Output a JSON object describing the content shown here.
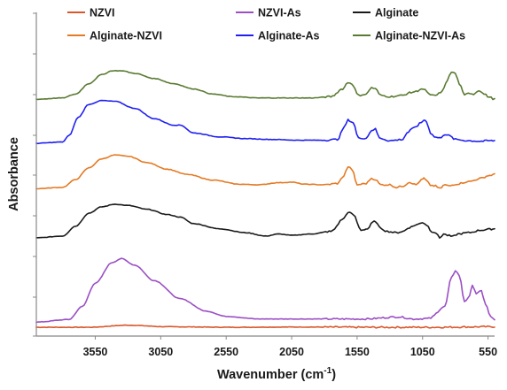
{
  "chart_data": {
    "type": "line",
    "xlabel": "Wavenumber (cm",
    "xlabel_sup": "-1",
    "xlabel_close": ")",
    "ylabel": "Absorbance",
    "x_reversed": true,
    "xlim": [
      4000,
      500
    ],
    "xticks": [
      3550,
      3050,
      2550,
      2050,
      1550,
      1050,
      550
    ],
    "y_tick_labels": false,
    "grid": false,
    "legend_position": "top",
    "series": [
      {
        "name": "NZVI",
        "color": "#d9572c",
        "offset": 0.1,
        "points": [
          [
            4000,
            0.1
          ],
          [
            3600,
            0.1
          ],
          [
            3300,
            0.18
          ],
          [
            3000,
            0.12
          ],
          [
            2500,
            0.1
          ],
          [
            2000,
            0.11
          ],
          [
            1500,
            0.1
          ],
          [
            1000,
            0.1
          ],
          [
            500,
            0.12
          ]
        ]
      },
      {
        "name": "NZVI-As",
        "color": "#9b4fc4",
        "offset": 0.3,
        "points": [
          [
            4000,
            0.3
          ],
          [
            3750,
            0.4
          ],
          [
            3650,
            0.9
          ],
          [
            3550,
            1.8
          ],
          [
            3420,
            2.6
          ],
          [
            3350,
            2.75
          ],
          [
            3250,
            2.5
          ],
          [
            3100,
            1.9
          ],
          [
            2900,
            1.2
          ],
          [
            2700,
            0.72
          ],
          [
            2550,
            0.52
          ],
          [
            2300,
            0.42
          ],
          [
            2000,
            0.42
          ],
          [
            1500,
            0.42
          ],
          [
            1230,
            0.5
          ],
          [
            1120,
            0.42
          ],
          [
            1000,
            0.44
          ],
          [
            880,
            0.9
          ],
          [
            830,
            2.0
          ],
          [
            800,
            2.3
          ],
          [
            770,
            2.1
          ],
          [
            730,
            1.1
          ],
          [
            690,
            1.3
          ],
          [
            670,
            1.75
          ],
          [
            640,
            1.4
          ],
          [
            600,
            1.5
          ],
          [
            570,
            1.0
          ],
          [
            530,
            0.5
          ],
          [
            500,
            0.4
          ]
        ]
      },
      {
        "name": "Alginate",
        "color": "#1a1a1a",
        "offset": 3.55,
        "points": [
          [
            4000,
            3.55
          ],
          [
            3800,
            3.62
          ],
          [
            3700,
            4.0
          ],
          [
            3600,
            4.5
          ],
          [
            3500,
            4.75
          ],
          [
            3400,
            4.85
          ],
          [
            3300,
            4.8
          ],
          [
            3150,
            4.65
          ],
          [
            3000,
            4.45
          ],
          [
            2900,
            4.35
          ],
          [
            2800,
            4.1
          ],
          [
            2600,
            3.9
          ],
          [
            2400,
            3.75
          ],
          [
            2250,
            3.62
          ],
          [
            2150,
            3.7
          ],
          [
            2050,
            3.65
          ],
          [
            1900,
            3.7
          ],
          [
            1750,
            3.8
          ],
          [
            1650,
            4.3
          ],
          [
            1620,
            4.55
          ],
          [
            1580,
            4.45
          ],
          [
            1520,
            3.85
          ],
          [
            1470,
            3.9
          ],
          [
            1430,
            4.15
          ],
          [
            1410,
            4.2
          ],
          [
            1380,
            3.95
          ],
          [
            1320,
            3.8
          ],
          [
            1250,
            3.75
          ],
          [
            1200,
            3.8
          ],
          [
            1150,
            3.95
          ],
          [
            1100,
            4.05
          ],
          [
            1050,
            4.15
          ],
          [
            1020,
            4.05
          ],
          [
            980,
            3.8
          ],
          [
            950,
            3.75
          ],
          [
            920,
            3.55
          ],
          [
            890,
            3.7
          ],
          [
            860,
            3.65
          ],
          [
            820,
            3.6
          ],
          [
            780,
            3.7
          ],
          [
            700,
            3.75
          ],
          [
            600,
            3.85
          ],
          [
            550,
            3.88
          ],
          [
            500,
            3.9
          ]
        ]
      },
      {
        "name": "Alginate-NZVI",
        "color": "#e47a24",
        "offset": 5.45,
        "points": [
          [
            4000,
            5.45
          ],
          [
            3800,
            5.5
          ],
          [
            3700,
            5.8
          ],
          [
            3600,
            6.25
          ],
          [
            3500,
            6.6
          ],
          [
            3400,
            6.75
          ],
          [
            3300,
            6.7
          ],
          [
            3150,
            6.45
          ],
          [
            3000,
            6.2
          ],
          [
            2850,
            6.0
          ],
          [
            2650,
            5.78
          ],
          [
            2450,
            5.62
          ],
          [
            2300,
            5.6
          ],
          [
            2150,
            5.68
          ],
          [
            2050,
            5.7
          ],
          [
            1950,
            5.62
          ],
          [
            1800,
            5.6
          ],
          [
            1700,
            5.65
          ],
          [
            1650,
            5.95
          ],
          [
            1620,
            6.3
          ],
          [
            1590,
            6.2
          ],
          [
            1550,
            5.6
          ],
          [
            1480,
            5.65
          ],
          [
            1440,
            5.85
          ],
          [
            1410,
            5.8
          ],
          [
            1370,
            5.6
          ],
          [
            1300,
            5.6
          ],
          [
            1250,
            5.5
          ],
          [
            1200,
            5.55
          ],
          [
            1150,
            5.7
          ],
          [
            1100,
            5.6
          ],
          [
            1060,
            5.78
          ],
          [
            1040,
            5.85
          ],
          [
            1020,
            5.75
          ],
          [
            990,
            5.58
          ],
          [
            950,
            5.55
          ],
          [
            920,
            5.45
          ],
          [
            880,
            5.6
          ],
          [
            850,
            5.55
          ],
          [
            800,
            5.62
          ],
          [
            700,
            5.72
          ],
          [
            600,
            5.85
          ],
          [
            550,
            5.95
          ],
          [
            500,
            6.0
          ]
        ]
      },
      {
        "name": "Alginate-As",
        "color": "#2020f0",
        "offset": 7.2,
        "points": [
          [
            4000,
            7.2
          ],
          [
            3800,
            7.25
          ],
          [
            3750,
            7.5
          ],
          [
            3680,
            8.2
          ],
          [
            3600,
            8.7
          ],
          [
            3500,
            8.85
          ],
          [
            3400,
            8.82
          ],
          [
            3250,
            8.55
          ],
          [
            3100,
            8.15
          ],
          [
            2950,
            7.9
          ],
          [
            2900,
            7.9
          ],
          [
            2800,
            7.6
          ],
          [
            2600,
            7.45
          ],
          [
            2400,
            7.38
          ],
          [
            2200,
            7.35
          ],
          [
            2000,
            7.32
          ],
          [
            1800,
            7.32
          ],
          [
            1700,
            7.35
          ],
          [
            1650,
            7.8
          ],
          [
            1620,
            8.1
          ],
          [
            1580,
            8.0
          ],
          [
            1540,
            7.4
          ],
          [
            1480,
            7.4
          ],
          [
            1440,
            7.7
          ],
          [
            1410,
            7.75
          ],
          [
            1380,
            7.4
          ],
          [
            1300,
            7.3
          ],
          [
            1200,
            7.35
          ],
          [
            1170,
            7.6
          ],
          [
            1130,
            7.75
          ],
          [
            1100,
            7.85
          ],
          [
            1060,
            8.0
          ],
          [
            1040,
            8.1
          ],
          [
            1020,
            8.05
          ],
          [
            990,
            7.6
          ],
          [
            960,
            7.45
          ],
          [
            920,
            7.4
          ],
          [
            880,
            7.55
          ],
          [
            850,
            7.5
          ],
          [
            800,
            7.35
          ],
          [
            700,
            7.3
          ],
          [
            600,
            7.28
          ],
          [
            550,
            7.3
          ],
          [
            500,
            7.3
          ]
        ]
      },
      {
        "name": "Alginate-NZVI-As",
        "color": "#5a7a32",
        "offset": 8.9,
        "points": [
          [
            4000,
            8.9
          ],
          [
            3800,
            8.95
          ],
          [
            3700,
            9.1
          ],
          [
            3600,
            9.5
          ],
          [
            3500,
            9.85
          ],
          [
            3420,
            10.0
          ],
          [
            3350,
            10.0
          ],
          [
            3250,
            9.9
          ],
          [
            3100,
            9.7
          ],
          [
            2950,
            9.5
          ],
          [
            2800,
            9.3
          ],
          [
            2650,
            9.1
          ],
          [
            2500,
            9.0
          ],
          [
            2300,
            8.95
          ],
          [
            2100,
            8.95
          ],
          [
            1900,
            8.95
          ],
          [
            1750,
            9.0
          ],
          [
            1660,
            9.3
          ],
          [
            1620,
            9.55
          ],
          [
            1590,
            9.5
          ],
          [
            1540,
            9.05
          ],
          [
            1480,
            9.1
          ],
          [
            1440,
            9.35
          ],
          [
            1410,
            9.3
          ],
          [
            1370,
            9.05
          ],
          [
            1300,
            9.0
          ],
          [
            1200,
            9.05
          ],
          [
            1150,
            9.15
          ],
          [
            1100,
            9.2
          ],
          [
            1060,
            9.3
          ],
          [
            1030,
            9.25
          ],
          [
            990,
            9.05
          ],
          [
            950,
            9.05
          ],
          [
            900,
            9.2
          ],
          [
            860,
            9.65
          ],
          [
            830,
            9.95
          ],
          [
            800,
            9.9
          ],
          [
            770,
            9.5
          ],
          [
            730,
            9.05
          ],
          [
            700,
            9.15
          ],
          [
            660,
            9.1
          ],
          [
            620,
            9.25
          ],
          [
            580,
            9.1
          ],
          [
            540,
            8.98
          ],
          [
            500,
            8.9
          ]
        ]
      }
    ]
  }
}
